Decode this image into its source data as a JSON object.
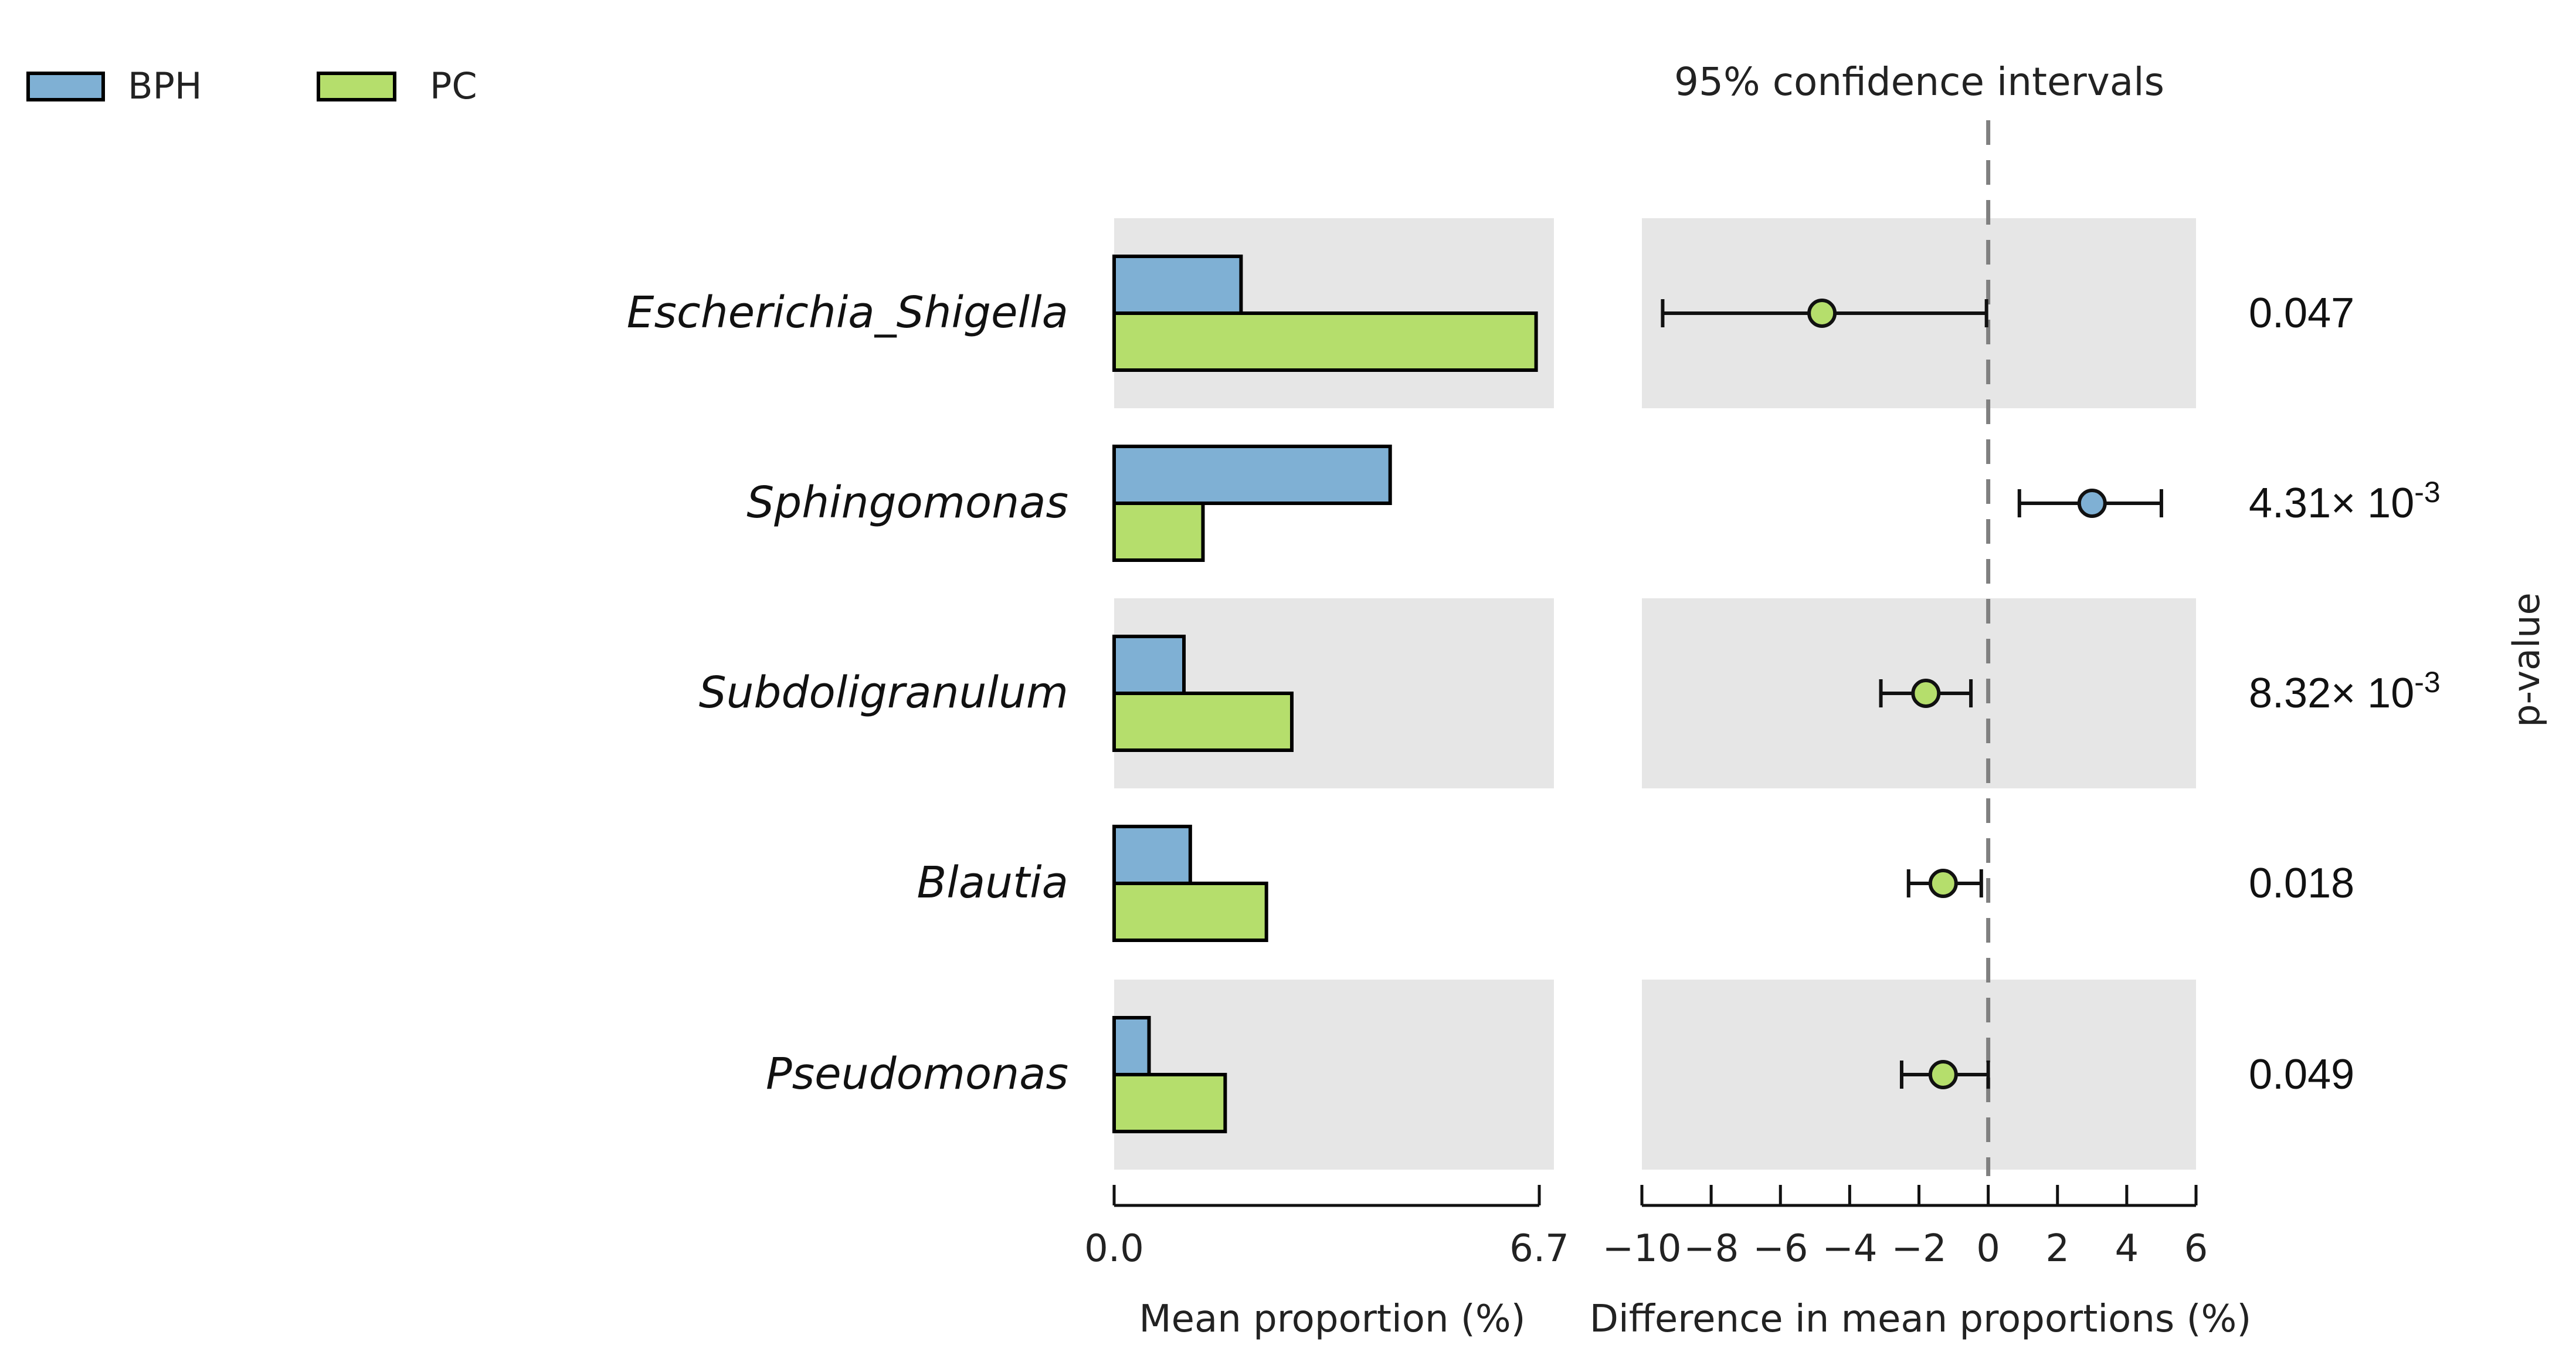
{
  "chart_data": {
    "type": "bar",
    "categories": [
      "Escherichia_Shigella",
      "Sphingomonas",
      "Subdoligranulum",
      "Blautia",
      "Pseudomonas"
    ],
    "legend": [
      {
        "name": "BPH",
        "color": "#7fb0d4"
      },
      {
        "name": "PC",
        "color": "#b5de6c"
      }
    ],
    "series": [
      {
        "name": "BPH",
        "values": [
          2.0,
          4.35,
          1.1,
          1.2,
          0.55
        ]
      },
      {
        "name": "PC",
        "values": [
          6.65,
          1.4,
          2.8,
          2.4,
          1.75
        ]
      }
    ],
    "bar_axis": {
      "xlabel": "Mean proportion (%)",
      "xlim": [
        0,
        6.7
      ],
      "ticks": [
        "0.0",
        "6.7"
      ]
    },
    "ci": {
      "title": "95% confidence intervals",
      "xlabel": "Difference in mean proportions (%)",
      "xlim": [
        -10,
        6
      ],
      "ticks": [
        "−10",
        "−8",
        "−6",
        "−4",
        "−2",
        "0",
        "2",
        "4",
        "6"
      ],
      "tick_values": [
        -10,
        -8,
        -6,
        -4,
        -2,
        0,
        2,
        4,
        6
      ],
      "points": [
        {
          "mean": -4.8,
          "lower": -9.4,
          "upper": -0.05,
          "group": "PC"
        },
        {
          "mean": 3.0,
          "lower": 0.9,
          "upper": 5.0,
          "group": "BPH"
        },
        {
          "mean": -1.8,
          "lower": -3.1,
          "upper": -0.5,
          "group": "PC"
        },
        {
          "mean": -1.3,
          "lower": -2.3,
          "upper": -0.2,
          "group": "PC"
        },
        {
          "mean": -1.3,
          "lower": -2.5,
          "upper": 0.0,
          "group": "PC"
        }
      ]
    },
    "pvalues": [
      {
        "base": "0.047",
        "exp": ""
      },
      {
        "base": "4.31× 10",
        "exp": "-3"
      },
      {
        "base": "8.32× 10",
        "exp": "-3"
      },
      {
        "base": "0.018",
        "exp": ""
      },
      {
        "base": "0.049",
        "exp": ""
      }
    ],
    "pvalue_label": "p-value",
    "shaded_rows": [
      0,
      2,
      4
    ]
  }
}
